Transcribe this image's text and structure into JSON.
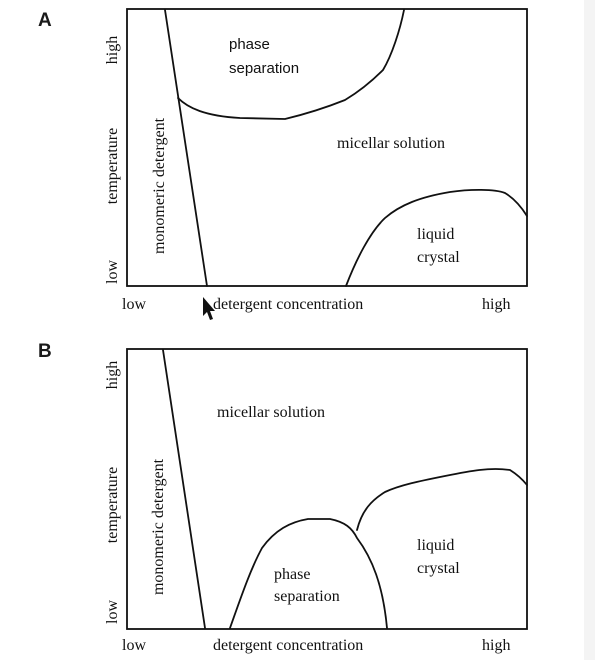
{
  "panels": [
    {
      "letter": "A",
      "y_axis_title": "temperature",
      "y_tick_high": "high",
      "y_tick_low": "low",
      "x_axis_title": "detergent concentration",
      "x_tick_low": "low",
      "x_tick_high": "high",
      "regions": {
        "monomeric": "monomeric detergent",
        "phase_sep_1": "phase",
        "phase_sep_2": "separation",
        "micellar": "micellar solution",
        "liquid_1": "liquid",
        "liquid_2": "crystal"
      }
    },
    {
      "letter": "B",
      "y_axis_title": "temperature",
      "y_tick_high": "high",
      "y_tick_low": "low",
      "x_axis_title": "detergent concentration",
      "x_tick_low": "low",
      "x_tick_high": "high",
      "regions": {
        "monomeric": "monomeric detergent",
        "phase_sep_1": "phase",
        "phase_sep_2": "separation",
        "micellar": "micellar solution",
        "liquid_1": "liquid",
        "liquid_2": "crystal"
      }
    }
  ]
}
